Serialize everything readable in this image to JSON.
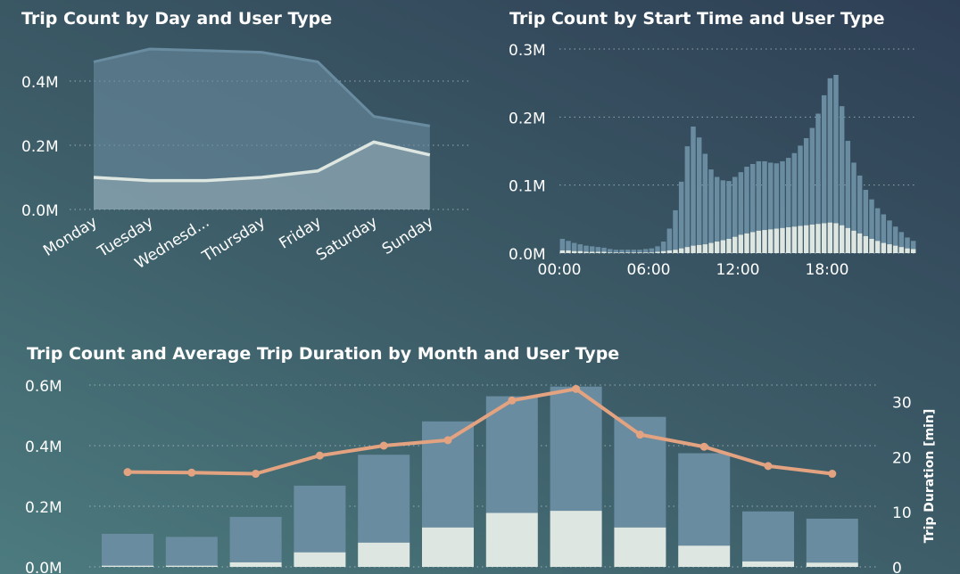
{
  "colors": {
    "subscriber": "#6a8ca0",
    "customer": "#dde6e0",
    "duration": "#e3a280",
    "grid": "#b8c6cc",
    "text": "#ffffff"
  },
  "chart_data": [
    {
      "id": "day",
      "type": "area",
      "title": "Trip Count by Day and User Type",
      "categories": [
        "Monday",
        "Tuesday",
        "Wednesd...",
        "Thursday",
        "Friday",
        "Saturday",
        "Sunday"
      ],
      "series": [
        {
          "values": [
            0.46,
            0.5,
            0.495,
            0.49,
            0.46,
            0.29,
            0.26
          ]
        },
        {
          "values": [
            0.1,
            0.09,
            0.09,
            0.1,
            0.12,
            0.21,
            0.17
          ]
        }
      ],
      "ylim": [
        0,
        0.5
      ],
      "yticks": [
        {
          "v": 0,
          "label": "0.0M"
        },
        {
          "v": 0.2,
          "label": "0.2M"
        },
        {
          "v": 0.4,
          "label": "0.4M"
        }
      ],
      "grid": true
    },
    {
      "id": "hour",
      "type": "bar",
      "stacked": true,
      "title": "Trip Count by Start Time and User Type",
      "xticks": [
        {
          "h": 0,
          "label": "00:00"
        },
        {
          "h": 6,
          "label": "06:00"
        },
        {
          "h": 12,
          "label": "12:00"
        },
        {
          "h": 18,
          "label": "18:00"
        }
      ],
      "series": [
        {
          "values": [
            0.017,
            0.014,
            0.012,
            0.01,
            0.009,
            0.008,
            0.007,
            0.006,
            0.005,
            0.004,
            0.004,
            0.004,
            0.004,
            0.004,
            0.005,
            0.006,
            0.008,
            0.014,
            0.032,
            0.058,
            0.098,
            0.148,
            0.175,
            0.158,
            0.133,
            0.108,
            0.095,
            0.088,
            0.085,
            0.088,
            0.092,
            0.098,
            0.1,
            0.102,
            0.101,
            0.098,
            0.096,
            0.098,
            0.102,
            0.108,
            0.118,
            0.128,
            0.142,
            0.162,
            0.188,
            0.212,
            0.218,
            0.175,
            0.128,
            0.1,
            0.085,
            0.068,
            0.058,
            0.048,
            0.042,
            0.035,
            0.028,
            0.022,
            0.016,
            0.012
          ]
        },
        {
          "values": [
            0.004,
            0.004,
            0.003,
            0.003,
            0.002,
            0.002,
            0.002,
            0.002,
            0.001,
            0.001,
            0.001,
            0.001,
            0.001,
            0.001,
            0.001,
            0.001,
            0.002,
            0.003,
            0.004,
            0.005,
            0.007,
            0.009,
            0.011,
            0.012,
            0.013,
            0.015,
            0.017,
            0.019,
            0.021,
            0.024,
            0.027,
            0.029,
            0.031,
            0.033,
            0.034,
            0.035,
            0.036,
            0.037,
            0.038,
            0.039,
            0.04,
            0.041,
            0.042,
            0.043,
            0.044,
            0.045,
            0.044,
            0.041,
            0.037,
            0.033,
            0.029,
            0.025,
            0.021,
            0.018,
            0.015,
            0.013,
            0.011,
            0.009,
            0.007,
            0.006
          ]
        }
      ],
      "ylim": [
        0,
        0.3
      ],
      "yticks": [
        {
          "v": 0,
          "label": "0.0M"
        },
        {
          "v": 0.1,
          "label": "0.1M"
        },
        {
          "v": 0.2,
          "label": "0.2M"
        },
        {
          "v": 0.3,
          "label": "0.3M"
        }
      ],
      "grid": true
    },
    {
      "id": "month",
      "type": "bar",
      "stacked": true,
      "combo_line": true,
      "title": "Trip Count and Average Trip Duration by Month and User Type",
      "y2label": "Trip Duration [min]",
      "series": [
        {
          "values": [
            0.105,
            0.095,
            0.15,
            0.22,
            0.29,
            0.35,
            0.385,
            0.41,
            0.365,
            0.305,
            0.165,
            0.145
          ]
        },
        {
          "values": [
            0.004,
            0.004,
            0.015,
            0.048,
            0.08,
            0.13,
            0.178,
            0.185,
            0.13,
            0.07,
            0.018,
            0.014
          ]
        },
        {
          "axis": "right",
          "values": [
            17.2,
            17.1,
            16.9,
            20.2,
            22,
            23,
            30.2,
            32.3,
            24,
            21.8,
            18.3,
            16.9
          ]
        }
      ],
      "ylim": [
        0,
        0.6
      ],
      "y2lim": [
        0,
        33
      ],
      "yticks": [
        {
          "v": 0,
          "label": "0.0M"
        },
        {
          "v": 0.2,
          "label": "0.2M"
        },
        {
          "v": 0.4,
          "label": "0.4M"
        },
        {
          "v": 0.6,
          "label": "0.6M"
        }
      ],
      "y2ticks": [
        {
          "v": 0,
          "label": "0"
        },
        {
          "v": 10,
          "label": "10"
        },
        {
          "v": 20,
          "label": "20"
        },
        {
          "v": 30,
          "label": "30"
        }
      ],
      "grid": true
    }
  ]
}
